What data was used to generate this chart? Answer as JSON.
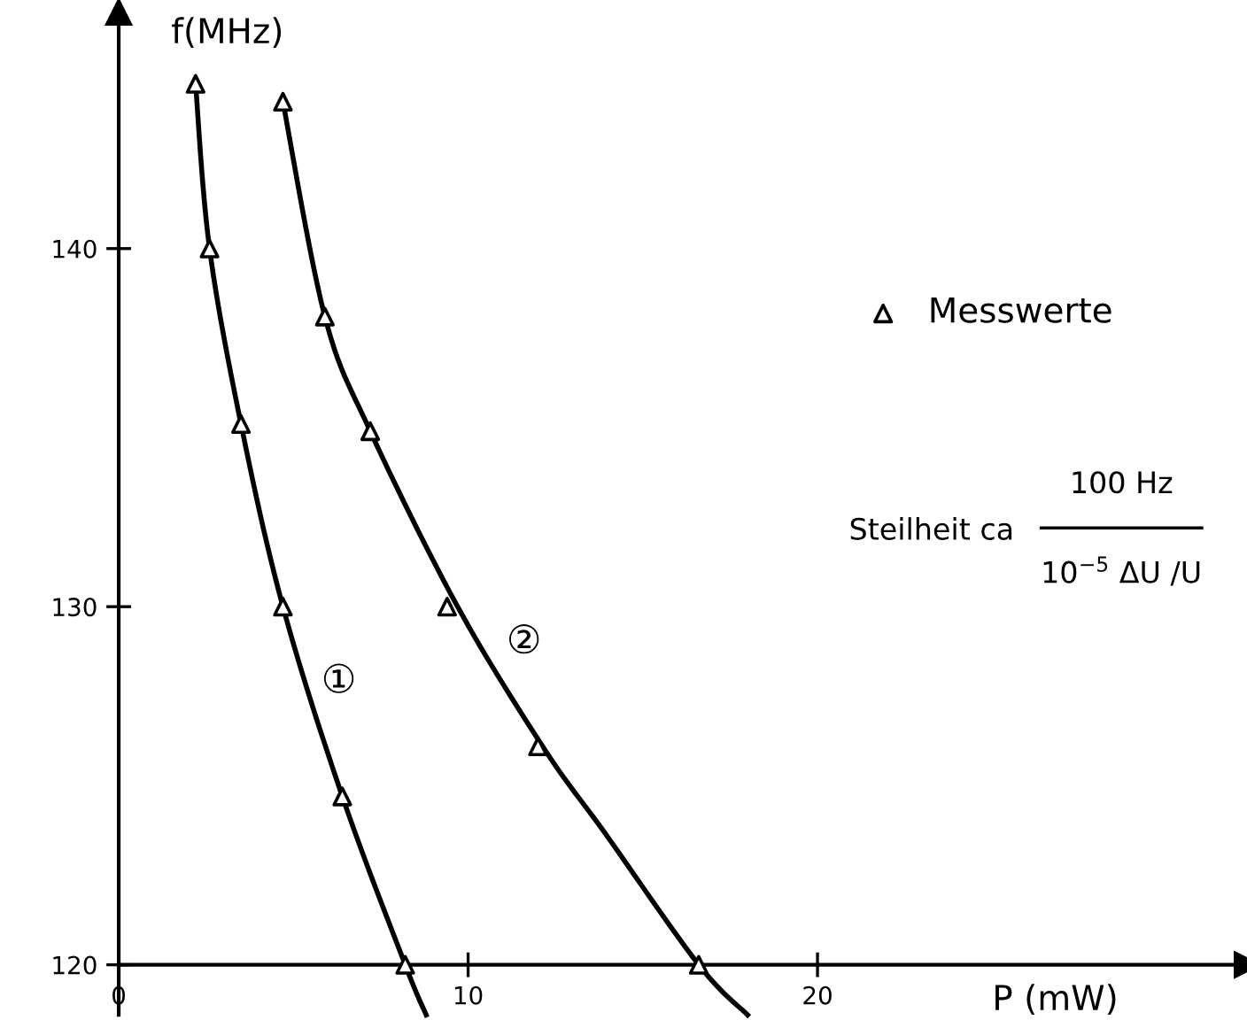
{
  "chart_data": {
    "type": "line",
    "xlabel": "P (mW)",
    "ylabel": "f(MHz)",
    "xlim": [
      0,
      32.3
    ],
    "ylim": [
      118.6,
      146.6
    ],
    "xticks": [
      0,
      10,
      20
    ],
    "yticks": [
      120,
      130,
      140
    ],
    "grid": false,
    "legend": "right",
    "line_style": "solid",
    "series": [
      {
        "color": "#000000",
        "marker": "none",
        "x": [
          2.2,
          2.6,
          3.5,
          4.7,
          6.4,
          8.2,
          8.8
        ],
        "values": [
          144.6,
          140,
          135.1,
          130,
          124.7,
          120,
          118.6
        ]
      },
      {
        "color": "#000000",
        "marker": "none",
        "x": [
          4.7,
          5.9,
          7.2,
          9.7,
          12.2,
          13.9,
          16.6,
          18.0
        ],
        "values": [
          144.1,
          138.1,
          134.9,
          130,
          126,
          123.7,
          120,
          118.6
        ]
      },
      {
        "type": "scatter",
        "name": "Messwerte",
        "color": "#000000",
        "marker": "triangle",
        "x": [
          2.2,
          2.6,
          3.5,
          4.7,
          6.4,
          8.2,
          4.7,
          5.9,
          7.2,
          9.4,
          12.0,
          16.6
        ],
        "values": [
          144.6,
          140,
          135.1,
          130,
          124.7,
          120,
          144.1,
          138.1,
          134.9,
          130,
          126.1,
          120
        ]
      }
    ],
    "annotations": [
      "①",
      "②",
      "Steilheit ca",
      "100 Hz",
      "10$^{−5}$ ΔU /U"
    ]
  }
}
